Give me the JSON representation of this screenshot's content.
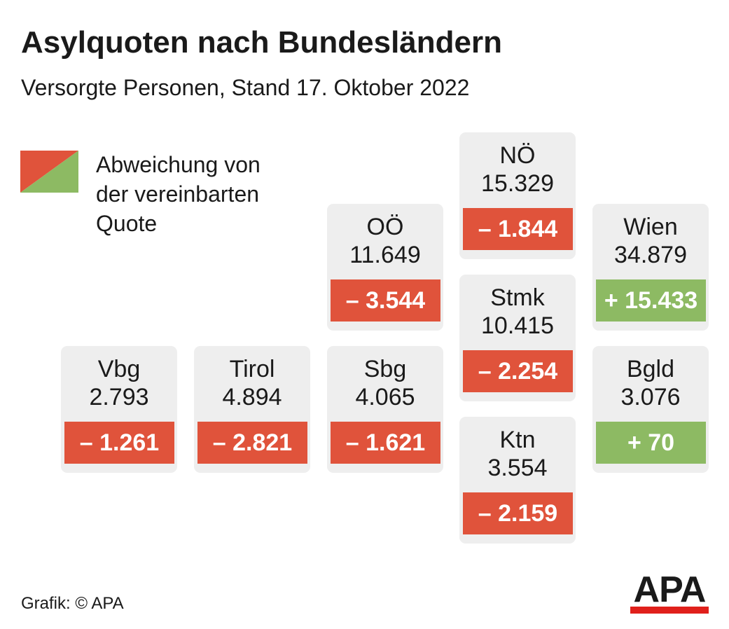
{
  "header": {
    "title": "Asylquoten nach Bundesländern",
    "subtitle": "Versorgte Personen, Stand 17. Oktober 2022"
  },
  "legend": {
    "label_lines": [
      "Abweichung von",
      "der vereinbarten",
      "Quote"
    ],
    "colors": [
      "#e0533b",
      "#8dba63"
    ]
  },
  "tiles": [
    {
      "name": "NÖ",
      "value": "15.329",
      "deviation": "– 1.844",
      "color": "#e0533b"
    },
    {
      "name": "OÖ",
      "value": "11.649",
      "deviation": "– 3.544",
      "color": "#e0533b"
    },
    {
      "name": "Wien",
      "value": "34.879",
      "deviation": "+ 15.433",
      "color": "#8dba63"
    },
    {
      "name": "Stmk",
      "value": "10.415",
      "deviation": "– 2.254",
      "color": "#e0533b"
    },
    {
      "name": "Vbg",
      "value": "2.793",
      "deviation": "– 1.261",
      "color": "#e0533b"
    },
    {
      "name": "Tirol",
      "value": "4.894",
      "deviation": "– 2.821",
      "color": "#e0533b"
    },
    {
      "name": "Sbg",
      "value": "4.065",
      "deviation": "– 1.621",
      "color": "#e0533b"
    },
    {
      "name": "Bgld",
      "value": "3.076",
      "deviation": "+ 70",
      "color": "#8dba63"
    },
    {
      "name": "Ktn",
      "value": "3.554",
      "deviation": "– 2.159",
      "color": "#e0533b"
    }
  ],
  "footer": {
    "credit": "Grafik: © APA",
    "logo": "APA"
  }
}
